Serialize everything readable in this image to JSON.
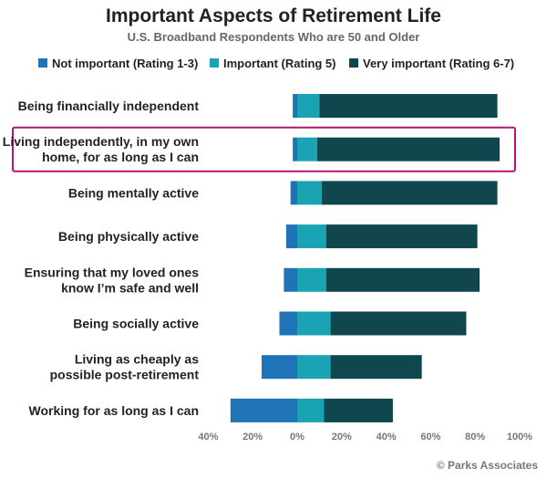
{
  "chart_data": {
    "type": "bar",
    "orientation": "horizontal",
    "stacked": true,
    "title": "Important Aspects of Retirement Life",
    "subtitle": "U.S. Broadband Respondents Who are 50 and Older",
    "categories": [
      "Being financially independent",
      "Living independently, in my own home, for as long as I can",
      "Being mentally active",
      "Being physically active",
      "Ensuring that my loved ones know I’m safe and well",
      "Being socially active",
      "Living as cheaply as possible post-retirement",
      "Working for as long as I can"
    ],
    "category_lines": [
      [
        "Being financially independent"
      ],
      [
        "Living independently, in my own",
        "home, for as long as I can"
      ],
      [
        "Being mentally active"
      ],
      [
        "Being physically active"
      ],
      [
        "Ensuring that my loved ones",
        "know I’m safe and well"
      ],
      [
        "Being socially active"
      ],
      [
        "Living as cheaply as",
        "possible post-retirement"
      ],
      [
        "Working for as long as I can"
      ]
    ],
    "series": [
      {
        "name": "Not important (Rating 1-3)",
        "color": "#1f74b8",
        "values": [
          -2,
          -2,
          -3,
          -5,
          -6,
          -8,
          -16,
          -30
        ]
      },
      {
        "name": "Important (Rating 5)",
        "color": "#1aa3b2",
        "values": [
          10,
          9,
          11,
          13,
          13,
          15,
          15,
          12
        ]
      },
      {
        "name": "Very important (Rating 6-7)",
        "color": "#10474f",
        "values": [
          80,
          82,
          79,
          68,
          69,
          61,
          41,
          31
        ]
      }
    ],
    "x_ticks": [
      "40%",
      "20%",
      "0%",
      "20%",
      "40%",
      "60%",
      "80%",
      "100%"
    ],
    "xlim": [
      -40,
      100
    ],
    "legend_position": "top",
    "grid": false,
    "highlighted_category": "Living independently, in my own home, for as long as I can",
    "highlight_color": "#b5156e"
  },
  "source": "© Parks Associates"
}
